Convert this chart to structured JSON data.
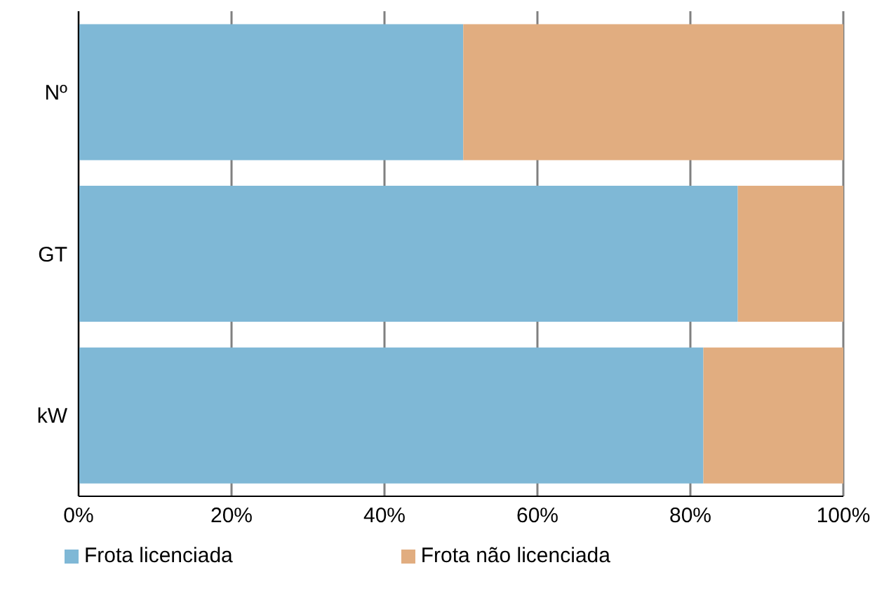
{
  "chart_data": {
    "type": "bar",
    "orientation": "horizontal",
    "stacked": true,
    "categories": [
      "Nº",
      "GT",
      "kW"
    ],
    "series": [
      {
        "name": "Frota licenciada",
        "color": "#7fb8d6",
        "values": [
          50.3,
          86.2,
          81.7
        ]
      },
      {
        "name": "Frota não licenciada",
        "color": "#e1ad80",
        "values": [
          49.7,
          13.8,
          18.3
        ]
      }
    ],
    "xlim": [
      0,
      100
    ],
    "xticks": [
      {
        "value": 0,
        "label": "0%"
      },
      {
        "value": 20,
        "label": "20%"
      },
      {
        "value": 40,
        "label": "40%"
      },
      {
        "value": 60,
        "label": "60%"
      },
      {
        "value": 80,
        "label": "80%"
      },
      {
        "value": 100,
        "label": "100%"
      }
    ],
    "grid": "x",
    "legend": "bottom"
  }
}
